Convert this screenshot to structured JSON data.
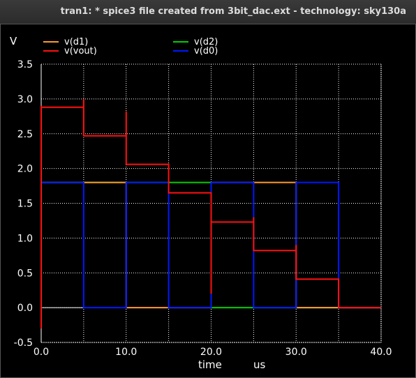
{
  "window": {
    "title": "tran1: * spice3 file created from 3bit_dac.ext - technology: sky130a"
  },
  "chart_data": {
    "type": "line",
    "ylabel": "V",
    "xlabel": "time",
    "xunit": "us",
    "xlim": [
      0,
      40
    ],
    "ylim": [
      -0.5,
      3.5
    ],
    "x_ticks": [
      "0.0",
      "10.0",
      "20.0",
      "30.0",
      "40.0"
    ],
    "y_ticks": [
      "-0.5",
      "0.0",
      "0.5",
      "1.0",
      "1.5",
      "2.0",
      "2.5",
      "3.0",
      "3.5"
    ],
    "grid": true,
    "legend": [
      "v(d1)",
      "v(d2)",
      "v(vout)",
      "v(d0)"
    ],
    "series": [
      {
        "name": "v(d2)",
        "color": "#00d000",
        "x": [
          0,
          0,
          20,
          20,
          40
        ],
        "y": [
          0,
          1.8,
          1.8,
          0,
          0
        ]
      },
      {
        "name": "v(d1)",
        "color": "#ff9a30",
        "x": [
          0,
          0,
          10,
          10,
          20,
          20,
          30,
          30,
          40
        ],
        "y": [
          0,
          1.8,
          1.8,
          0,
          0,
          1.8,
          1.8,
          0,
          0
        ]
      },
      {
        "name": "v(d0)",
        "color": "#0018ff",
        "x": [
          0,
          0,
          5,
          5,
          10,
          10,
          15,
          15,
          20,
          20,
          25,
          25,
          30,
          30,
          35,
          35,
          40
        ],
        "y": [
          0,
          1.8,
          1.8,
          0,
          0,
          1.8,
          1.8,
          0,
          0,
          1.8,
          1.8,
          0,
          0,
          1.8,
          1.8,
          0,
          0
        ]
      },
      {
        "name": "v(vout)",
        "color": "#ff1010",
        "x": [
          0,
          0,
          0.05,
          5,
          5,
          5,
          10,
          10,
          10,
          15,
          15,
          15,
          20,
          20,
          20,
          25,
          25,
          25,
          30,
          30,
          30,
          35,
          35,
          40
        ],
        "y": [
          -0.3,
          2.9,
          2.88,
          2.88,
          3.0,
          2.47,
          2.47,
          2.82,
          2.06,
          2.06,
          1.9,
          1.65,
          1.65,
          0.2,
          1.23,
          1.23,
          1.3,
          0.82,
          0.82,
          0.9,
          0.41,
          0.41,
          0,
          0
        ]
      }
    ]
  }
}
